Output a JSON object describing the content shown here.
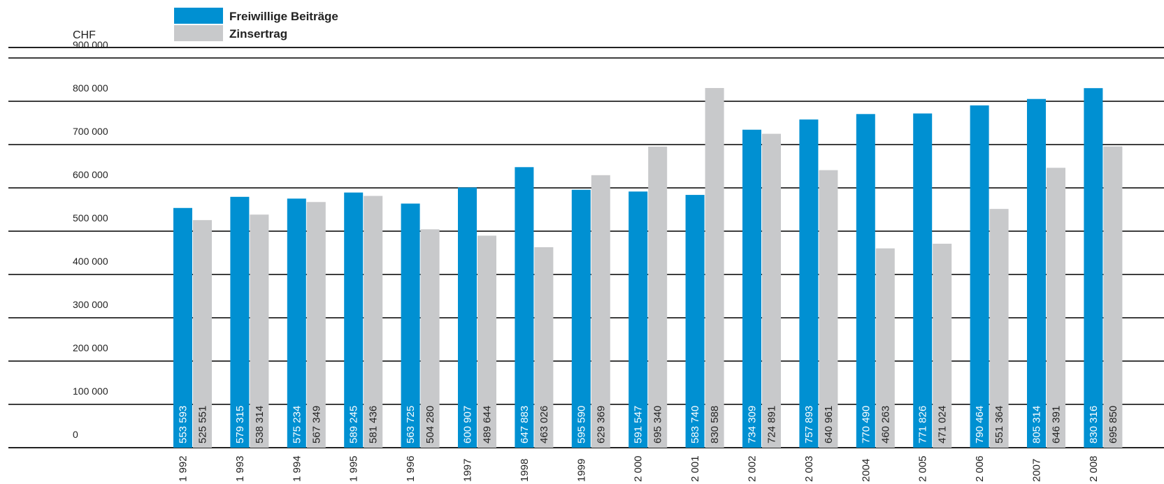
{
  "chart_data": {
    "type": "bar",
    "unit_label": "CHF",
    "categories": [
      "1992",
      "1993",
      "1994",
      "1995",
      "1996",
      "1997",
      "1998",
      "1999",
      "2000",
      "2001",
      "2002",
      "2003",
      "2004",
      "2005",
      "2006",
      "2007",
      "2008"
    ],
    "category_labels": [
      "1 992",
      "1 993",
      "1 994",
      "1 995",
      "1 996",
      "1997",
      "1998",
      "1999",
      "2 000",
      "2 001",
      "2 002",
      "2 003",
      "2004",
      "2 005",
      "2 006",
      "2007",
      "2 008"
    ],
    "series": [
      {
        "name": "Freiwillige Beiträge",
        "color": "#0090d2",
        "values": [
          553593,
          579315,
          575234,
          589245,
          563725,
          600907,
          647883,
          595590,
          591547,
          583740,
          734309,
          757893,
          770490,
          771826,
          790464,
          805314,
          830316
        ],
        "value_labels": [
          "553 593",
          "579 315",
          "575 234",
          "589 245",
          "563 725",
          "600 907",
          "647 883",
          "595 590",
          "591 547",
          "583 740",
          "734 309",
          "757 893",
          "770 490",
          "771 826",
          "790 464",
          "805 314",
          "830 316"
        ]
      },
      {
        "name": "Zinsertrag",
        "color": "#c8c9cb",
        "values": [
          525551,
          538314,
          567349,
          581436,
          504280,
          489644,
          463026,
          629369,
          695340,
          830588,
          724891,
          640961,
          460263,
          471024,
          551364,
          646391,
          695850
        ],
        "value_labels": [
          "525 551",
          "538 314",
          "567 349",
          "581 436",
          "504 280",
          "489 644",
          "463 026",
          "629 369",
          "695 340",
          "830 588",
          "724 891",
          "640 961",
          "460 263",
          "471 024",
          "551 364",
          "646 391",
          "695 850"
        ]
      }
    ],
    "y_ticks": [
      0,
      100000,
      200000,
      300000,
      400000,
      500000,
      600000,
      700000,
      800000,
      900000
    ],
    "y_tick_labels": [
      "0",
      "100 000",
      "200 000",
      "300 000",
      "400 000",
      "500 000",
      "600 000",
      "700 000",
      "800 000",
      "900 000"
    ],
    "ylim": [
      0,
      900000
    ],
    "grid": true,
    "legend_position": "top-left"
  }
}
